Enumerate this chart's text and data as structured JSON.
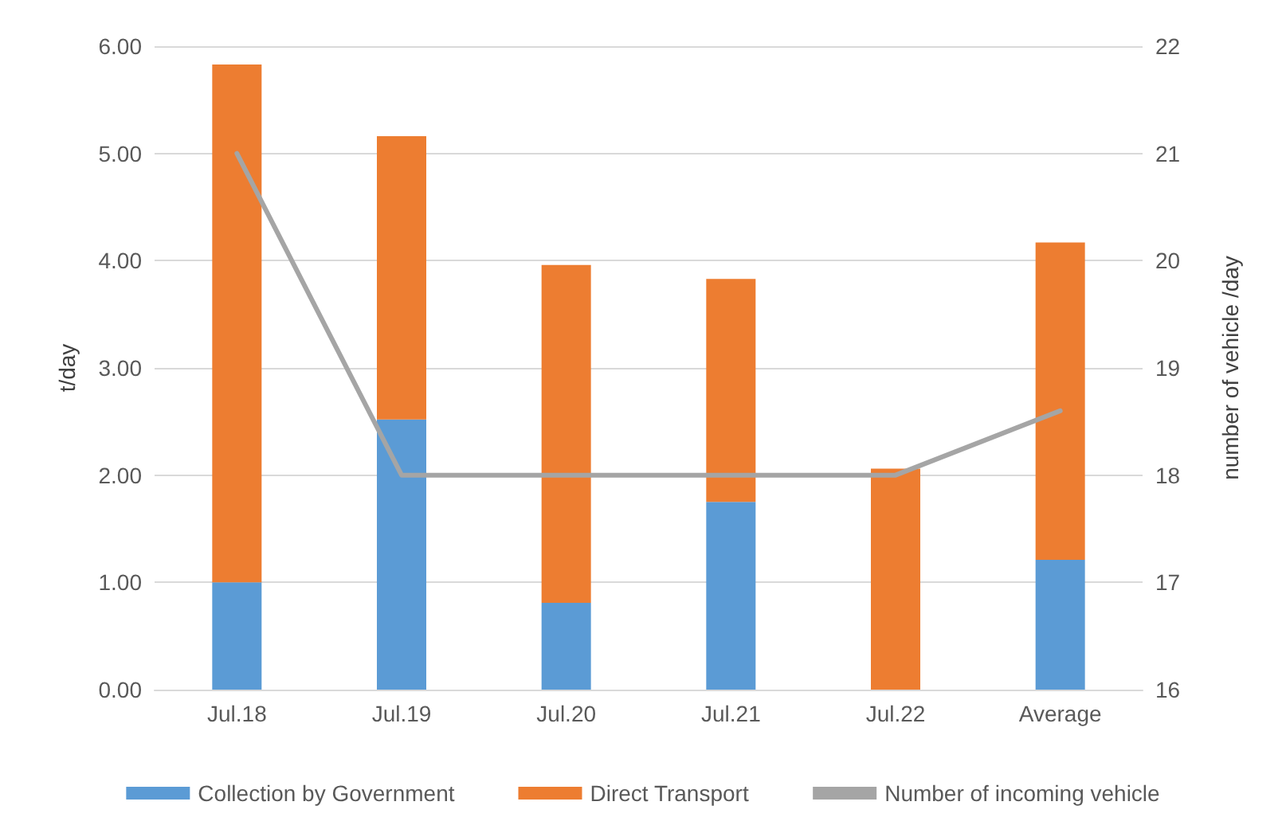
{
  "chart_data": {
    "type": "bar",
    "stacked": true,
    "ylabel": "t/day",
    "y2label": "number of vehicle /day",
    "categories": [
      "Jul.18",
      "Jul.19",
      "Jul.20",
      "Jul.21",
      "Jul.22",
      "Average"
    ],
    "series": [
      {
        "name": "Collection by Government",
        "color": "#5b9bd5",
        "values": [
          1.0,
          2.52,
          0.81,
          1.75,
          0,
          1.21
        ]
      },
      {
        "name": "Direct Transport",
        "color": "#ed7d31",
        "values": [
          4.83,
          2.64,
          3.15,
          2.08,
          2.06,
          2.96
        ]
      },
      {
        "name": "Number of incoming vehicle",
        "type": "line",
        "axis": "y2",
        "color": "#a5a5a5",
        "marker": "none",
        "values": [
          21,
          18,
          18,
          18,
          18,
          18.6
        ]
      }
    ],
    "ylim": [
      0,
      6
    ],
    "yticks": [
      {
        "value": 0,
        "label": "0.00"
      },
      {
        "value": 1,
        "label": "1.00"
      },
      {
        "value": 2,
        "label": "2.00"
      },
      {
        "value": 3,
        "label": "3.00"
      },
      {
        "value": 4,
        "label": "4.00"
      },
      {
        "value": 5,
        "label": "5.00"
      },
      {
        "value": 6,
        "label": "6.00"
      }
    ],
    "y2lim": [
      16,
      22
    ],
    "y2ticks": [
      16,
      17,
      18,
      19,
      20,
      21,
      22
    ],
    "grid": "y",
    "legend": "bottom"
  }
}
